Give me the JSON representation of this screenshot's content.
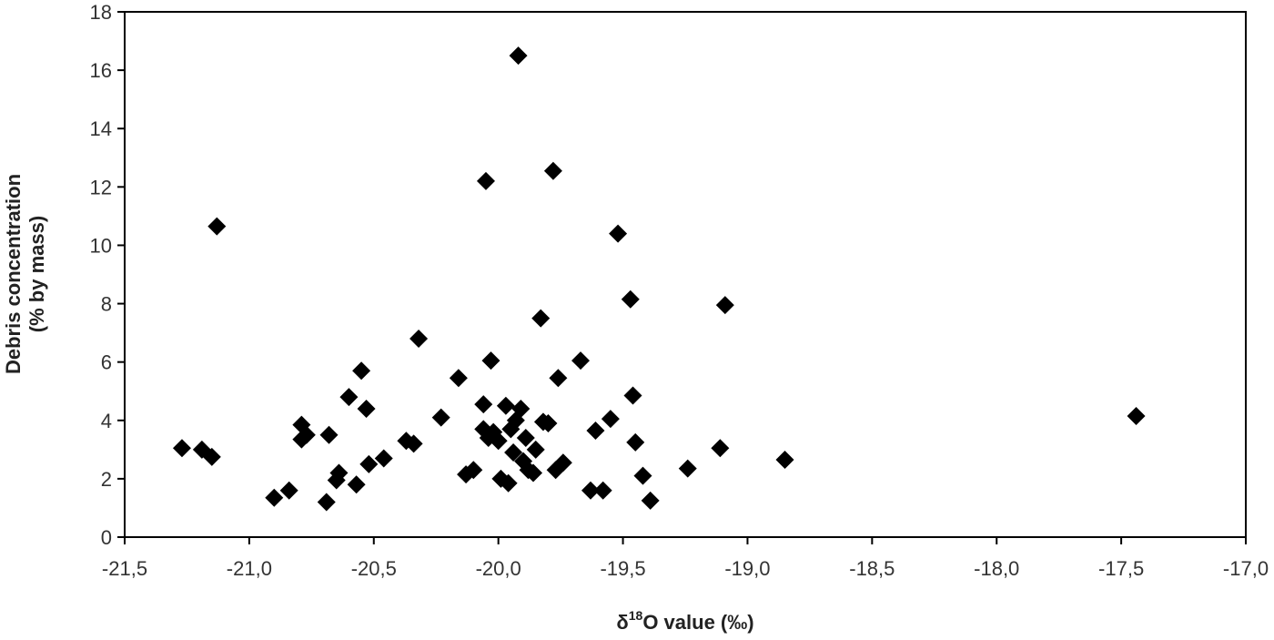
{
  "chart_data": {
    "type": "scatter",
    "xlabel": "δ18O value (‰)",
    "xlabel_parts": {
      "delta": "δ",
      "superscript": "18",
      "rest": "O value (‰)"
    },
    "ylabel_lines": [
      "Debris concentration",
      "(% by mass)"
    ],
    "xlim": [
      -21.5,
      -17.0
    ],
    "ylim": [
      0,
      18
    ],
    "x_ticks": [
      -21.5,
      -21.0,
      -20.5,
      -20.0,
      -19.5,
      -19.0,
      -18.5,
      -18.0,
      -17.5,
      -17.0
    ],
    "x_tick_labels": [
      "-21,5",
      "-21,0",
      "-20,5",
      "-20,0",
      "-19,5",
      "-19,0",
      "-18,5",
      "-18,0",
      "-17,5",
      "-17,0"
    ],
    "y_ticks": [
      0,
      2,
      4,
      6,
      8,
      10,
      12,
      14,
      16,
      18
    ],
    "y_tick_labels": [
      "0",
      "2",
      "4",
      "6",
      "8",
      "10",
      "12",
      "14",
      "16",
      "18"
    ],
    "grid": false,
    "legend": "none",
    "marker": "diamond",
    "marker_color": "#000000",
    "points": [
      {
        "x": -21.27,
        "y": 3.05
      },
      {
        "x": -21.19,
        "y": 3.0
      },
      {
        "x": -21.15,
        "y": 2.75
      },
      {
        "x": -21.13,
        "y": 10.65
      },
      {
        "x": -20.9,
        "y": 1.35
      },
      {
        "x": -20.84,
        "y": 1.6
      },
      {
        "x": -20.79,
        "y": 3.85
      },
      {
        "x": -20.79,
        "y": 3.35
      },
      {
        "x": -20.77,
        "y": 3.5
      },
      {
        "x": -20.69,
        "y": 1.2
      },
      {
        "x": -20.68,
        "y": 3.5
      },
      {
        "x": -20.65,
        "y": 1.95
      },
      {
        "x": -20.64,
        "y": 2.2
      },
      {
        "x": -20.6,
        "y": 4.8
      },
      {
        "x": -20.57,
        "y": 1.8
      },
      {
        "x": -20.55,
        "y": 5.7
      },
      {
        "x": -20.53,
        "y": 4.4
      },
      {
        "x": -20.52,
        "y": 2.5
      },
      {
        "x": -20.46,
        "y": 2.7
      },
      {
        "x": -20.37,
        "y": 3.3
      },
      {
        "x": -20.34,
        "y": 3.2
      },
      {
        "x": -20.32,
        "y": 6.8
      },
      {
        "x": -20.23,
        "y": 4.1
      },
      {
        "x": -20.16,
        "y": 5.45
      },
      {
        "x": -20.13,
        "y": 2.15
      },
      {
        "x": -20.1,
        "y": 2.3
      },
      {
        "x": -20.06,
        "y": 4.55
      },
      {
        "x": -20.06,
        "y": 3.7
      },
      {
        "x": -20.05,
        "y": 12.2
      },
      {
        "x": -20.04,
        "y": 3.4
      },
      {
        "x": -20.03,
        "y": 6.05
      },
      {
        "x": -20.02,
        "y": 3.6
      },
      {
        "x": -20.0,
        "y": 3.3
      },
      {
        "x": -19.99,
        "y": 2.0
      },
      {
        "x": -19.97,
        "y": 4.5
      },
      {
        "x": -19.96,
        "y": 1.85
      },
      {
        "x": -19.95,
        "y": 3.7
      },
      {
        "x": -19.94,
        "y": 2.9
      },
      {
        "x": -19.93,
        "y": 4.0
      },
      {
        "x": -19.92,
        "y": 16.5
      },
      {
        "x": -19.91,
        "y": 4.4
      },
      {
        "x": -19.9,
        "y": 2.6
      },
      {
        "x": -19.89,
        "y": 3.4
      },
      {
        "x": -19.88,
        "y": 2.3
      },
      {
        "x": -19.86,
        "y": 2.2
      },
      {
        "x": -19.85,
        "y": 3.0
      },
      {
        "x": -19.83,
        "y": 7.5
      },
      {
        "x": -19.82,
        "y": 3.95
      },
      {
        "x": -19.8,
        "y": 3.9
      },
      {
        "x": -19.78,
        "y": 12.55
      },
      {
        "x": -19.77,
        "y": 2.3
      },
      {
        "x": -19.76,
        "y": 5.45
      },
      {
        "x": -19.74,
        "y": 2.55
      },
      {
        "x": -19.67,
        "y": 6.05
      },
      {
        "x": -19.63,
        "y": 1.6
      },
      {
        "x": -19.61,
        "y": 3.65
      },
      {
        "x": -19.58,
        "y": 1.6
      },
      {
        "x": -19.55,
        "y": 4.05
      },
      {
        "x": -19.52,
        "y": 10.4
      },
      {
        "x": -19.47,
        "y": 8.15
      },
      {
        "x": -19.46,
        "y": 4.85
      },
      {
        "x": -19.45,
        "y": 3.25
      },
      {
        "x": -19.42,
        "y": 2.1
      },
      {
        "x": -19.39,
        "y": 1.25
      },
      {
        "x": -19.24,
        "y": 2.35
      },
      {
        "x": -19.11,
        "y": 3.05
      },
      {
        "x": -19.09,
        "y": 7.95
      },
      {
        "x": -18.85,
        "y": 2.65
      },
      {
        "x": -17.44,
        "y": 4.15
      }
    ]
  }
}
